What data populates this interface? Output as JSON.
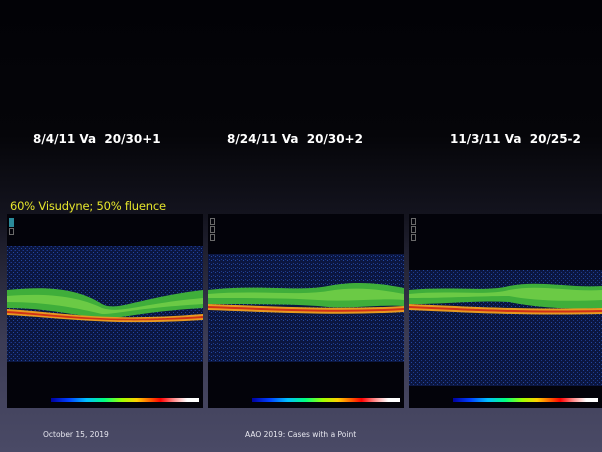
{
  "slide": {
    "date_labels": [
      "8/4/11 Va  20/30+1",
      "8/24/11 Va  20/30+2",
      "11/3/11 Va  20/25-2"
    ],
    "treatment_note": "60% Visudyne; 50% fluence",
    "footer": {
      "date": "October 15, 2019",
      "conference": "AAO 2019: Cases with a Point"
    }
  }
}
